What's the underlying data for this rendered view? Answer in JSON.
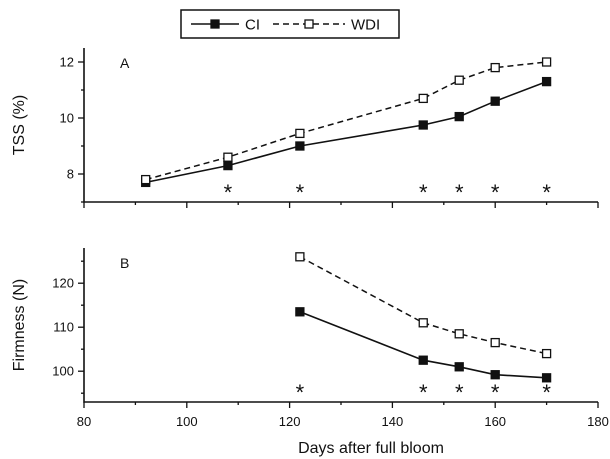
{
  "chart_data": [
    {
      "type": "line",
      "panel_label": "A",
      "ylabel": "TSS (%)",
      "xlabel": "",
      "xlim": [
        80,
        180
      ],
      "ylim": [
        7,
        12.5
      ],
      "yticks": [
        "8",
        "10",
        "12"
      ],
      "ytick_values": [
        8,
        10,
        12
      ],
      "series": [
        {
          "name": "CI",
          "marker": "filled-square",
          "line": "solid",
          "x": [
            92,
            108,
            122,
            146,
            153,
            160,
            170
          ],
          "y": [
            7.7,
            8.3,
            9.0,
            9.75,
            10.05,
            10.6,
            11.3
          ]
        },
        {
          "name": "WDI",
          "marker": "open-square",
          "line": "dashed",
          "x": [
            92,
            108,
            122,
            146,
            153,
            160,
            170
          ],
          "y": [
            7.8,
            8.6,
            9.45,
            10.7,
            11.35,
            11.8,
            12.0
          ]
        }
      ],
      "significance_marker": "*",
      "significant_x": [
        108,
        122,
        146,
        153,
        160,
        170
      ]
    },
    {
      "type": "line",
      "panel_label": "B",
      "ylabel": "Firmness (N)",
      "xlabel": "Days after full bloom",
      "xlim": [
        80,
        180
      ],
      "ylim": [
        93,
        128
      ],
      "xticks": [
        "80",
        "100",
        "120",
        "140",
        "160",
        "180"
      ],
      "xtick_values": [
        80,
        100,
        120,
        140,
        160,
        180
      ],
      "yticks": [
        "100",
        "110",
        "120"
      ],
      "ytick_values": [
        100,
        110,
        120
      ],
      "series": [
        {
          "name": "CI",
          "marker": "filled-square",
          "line": "solid",
          "x": [
            122,
            146,
            153,
            160,
            170
          ],
          "y": [
            113.5,
            102.5,
            101.0,
            99.2,
            98.5
          ]
        },
        {
          "name": "WDI",
          "marker": "open-square",
          "line": "dashed",
          "x": [
            122,
            146,
            153,
            160,
            170
          ],
          "y": [
            126.0,
            111.0,
            108.5,
            106.5,
            104.0
          ]
        }
      ],
      "significance_marker": "*",
      "significant_x": [
        122,
        146,
        153,
        160,
        170
      ]
    }
  ],
  "legend": {
    "placement": "top-center",
    "entries": [
      {
        "label": "CI",
        "marker": "filled-square",
        "line": "solid"
      },
      {
        "label": "WDI",
        "marker": "open-square",
        "line": "dashed"
      }
    ]
  },
  "colors": {
    "ink": "#111111",
    "background": "#ffffff"
  }
}
